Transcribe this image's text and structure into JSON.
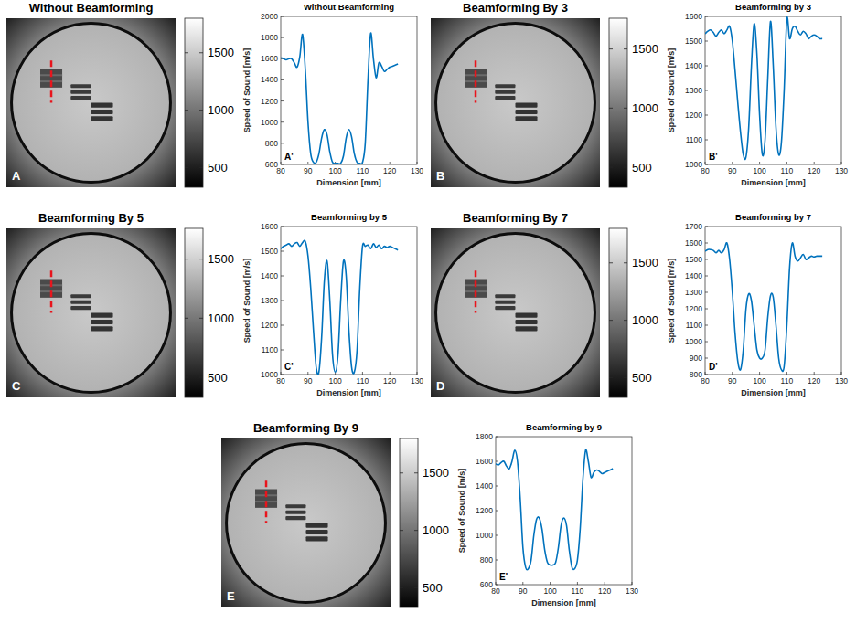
{
  "chart_data": [
    {
      "type": "line",
      "title": "Without Beamforming",
      "panel_label": "A'",
      "x_label": "Dimension [mm]",
      "y_label": "Speed of Sound [m/s]",
      "color": "#0072bd",
      "grid": false,
      "xlim": [
        80,
        130
      ],
      "xticks": [
        80,
        90,
        100,
        110,
        120,
        130
      ],
      "ylim": [
        600,
        2000
      ],
      "yticks": [
        600,
        800,
        1000,
        1200,
        1400,
        1600,
        1800,
        2000
      ],
      "x": [
        80,
        81,
        82,
        83,
        84,
        85,
        86,
        87,
        88,
        89,
        90,
        91,
        92,
        93,
        94,
        95,
        96,
        97,
        98,
        99,
        100,
        101,
        102,
        103,
        104,
        105,
        106,
        107,
        108,
        109,
        110,
        111,
        112,
        113,
        114,
        115,
        116,
        117,
        118,
        119,
        120,
        121,
        122,
        123
      ],
      "values": [
        1610,
        1600,
        1590,
        1600,
        1600,
        1560,
        1520,
        1620,
        1830,
        1500,
        1000,
        700,
        620,
        620,
        700,
        850,
        930,
        880,
        720,
        620,
        610,
        610,
        610,
        680,
        850,
        930,
        860,
        700,
        620,
        610,
        620,
        800,
        1400,
        1840,
        1600,
        1420,
        1560,
        1530,
        1480,
        1500,
        1520,
        1530,
        1540,
        1550
      ]
    },
    {
      "type": "line",
      "title": "Beamforming by 3",
      "panel_label": "B'",
      "x_label": "Dimension [mm]",
      "y_label": "Speed of Sound [m/s]",
      "color": "#0072bd",
      "grid": false,
      "xlim": [
        80,
        130
      ],
      "xticks": [
        80,
        90,
        100,
        110,
        120,
        130
      ],
      "ylim": [
        1000,
        1600
      ],
      "yticks": [
        1000,
        1100,
        1200,
        1300,
        1400,
        1500,
        1600
      ],
      "x": [
        80,
        81,
        82,
        83,
        84,
        85,
        86,
        87,
        88,
        89,
        90,
        91,
        92,
        93,
        94,
        95,
        96,
        97,
        98,
        99,
        100,
        101,
        102,
        103,
        104,
        105,
        106,
        107,
        108,
        109,
        110,
        111,
        112,
        113,
        114,
        115,
        116,
        117,
        118,
        119,
        120,
        121,
        122,
        123
      ],
      "values": [
        1530,
        1540,
        1545,
        1535,
        1520,
        1535,
        1545,
        1530,
        1545,
        1560,
        1500,
        1380,
        1250,
        1130,
        1040,
        1030,
        1150,
        1400,
        1570,
        1450,
        1200,
        1040,
        1100,
        1350,
        1580,
        1400,
        1150,
        1040,
        1090,
        1300,
        1590,
        1510,
        1550,
        1560,
        1540,
        1525,
        1540,
        1530,
        1510,
        1520,
        1525,
        1520,
        1510,
        1510
      ]
    },
    {
      "type": "line",
      "title": "Beamforming by 5",
      "panel_label": "C'",
      "x_label": "Dimension [mm]",
      "y_label": "Speed of Sound [m/s]",
      "color": "#0072bd",
      "grid": false,
      "xlim": [
        80,
        130
      ],
      "xticks": [
        80,
        90,
        100,
        110,
        120,
        130
      ],
      "ylim": [
        1000,
        1600
      ],
      "yticks": [
        1000,
        1100,
        1200,
        1300,
        1400,
        1500,
        1600
      ],
      "x": [
        80,
        81,
        82,
        83,
        84,
        85,
        86,
        87,
        88,
        89,
        90,
        91,
        92,
        93,
        94,
        95,
        96,
        97,
        98,
        99,
        100,
        101,
        102,
        103,
        104,
        105,
        106,
        107,
        108,
        109,
        110,
        111,
        112,
        113,
        114,
        115,
        116,
        117,
        118,
        119,
        120,
        121,
        122,
        123
      ],
      "values": [
        1510,
        1520,
        1525,
        1530,
        1520,
        1530,
        1535,
        1520,
        1535,
        1540,
        1480,
        1350,
        1180,
        1030,
        1010,
        1150,
        1380,
        1460,
        1300,
        1080,
        1010,
        1080,
        1300,
        1460,
        1400,
        1180,
        1030,
        1010,
        1100,
        1350,
        1520,
        1520,
        1525,
        1510,
        1530,
        1515,
        1525,
        1510,
        1520,
        1515,
        1520,
        1515,
        1510,
        1505
      ]
    },
    {
      "type": "line",
      "title": "Beamforming by 7",
      "panel_label": "D'",
      "x_label": "Dimension [mm]",
      "y_label": "Speed of Sound [m/s]",
      "color": "#0072bd",
      "grid": false,
      "xlim": [
        80,
        130
      ],
      "xticks": [
        80,
        90,
        100,
        110,
        120,
        130
      ],
      "ylim": [
        800,
        1700
      ],
      "yticks": [
        800,
        900,
        1000,
        1100,
        1200,
        1300,
        1400,
        1500,
        1600,
        1700
      ],
      "x": [
        80,
        81,
        82,
        83,
        84,
        85,
        86,
        87,
        88,
        89,
        90,
        91,
        92,
        93,
        94,
        95,
        96,
        97,
        98,
        99,
        100,
        101,
        102,
        103,
        104,
        105,
        106,
        107,
        108,
        109,
        110,
        111,
        112,
        113,
        114,
        115,
        116,
        117,
        118,
        119,
        120,
        121,
        122,
        123
      ],
      "values": [
        1550,
        1560,
        1560,
        1555,
        1540,
        1555,
        1540,
        1560,
        1600,
        1500,
        1300,
        1050,
        880,
        830,
        950,
        1200,
        1290,
        1250,
        1100,
        950,
        900,
        900,
        950,
        1150,
        1280,
        1270,
        1100,
        900,
        830,
        850,
        1100,
        1450,
        1600,
        1520,
        1490,
        1510,
        1530,
        1500,
        1510,
        1520,
        1515,
        1520,
        1520,
        1520
      ]
    },
    {
      "type": "line",
      "title": "Beamforming by 9",
      "panel_label": "E'",
      "x_label": "Dimension [mm]",
      "y_label": "Speed of Sound [m/s]",
      "color": "#0072bd",
      "grid": false,
      "xlim": [
        80,
        130
      ],
      "xticks": [
        80,
        90,
        100,
        110,
        120,
        130
      ],
      "ylim": [
        600,
        1800
      ],
      "yticks": [
        600,
        800,
        1000,
        1200,
        1400,
        1600,
        1800
      ],
      "x": [
        80,
        81,
        82,
        83,
        84,
        85,
        86,
        87,
        88,
        89,
        90,
        91,
        92,
        93,
        94,
        95,
        96,
        97,
        98,
        99,
        100,
        101,
        102,
        103,
        104,
        105,
        106,
        107,
        108,
        109,
        110,
        111,
        112,
        113,
        114,
        115,
        116,
        117,
        118,
        119,
        120,
        121,
        122,
        123
      ],
      "values": [
        1580,
        1570,
        1590,
        1600,
        1560,
        1540,
        1600,
        1690,
        1600,
        1300,
        900,
        740,
        730,
        800,
        1000,
        1130,
        1140,
        1050,
        880,
        780,
        760,
        760,
        780,
        900,
        1080,
        1140,
        1080,
        880,
        740,
        730,
        800,
        1050,
        1450,
        1690,
        1600,
        1470,
        1510,
        1530,
        1520,
        1500,
        1510,
        1520,
        1530,
        1540
      ]
    }
  ],
  "images": [
    {
      "label": "A",
      "title": "Without Beamforming",
      "colorbar": {
        "range": [
          330,
          1800
        ],
        "ticks": [
          500,
          1000,
          1500
        ]
      }
    },
    {
      "label": "B",
      "title": "Beamforming By 3",
      "colorbar": {
        "range": [
          330,
          1760
        ],
        "ticks": [
          500,
          1000,
          1500
        ]
      }
    },
    {
      "label": "C",
      "title": "Beamforming By 5",
      "colorbar": {
        "range": [
          330,
          1760
        ],
        "ticks": [
          500,
          1000,
          1500
        ]
      }
    },
    {
      "label": "D",
      "title": "Beamforming By 7",
      "colorbar": {
        "range": [
          330,
          1800
        ],
        "ticks": [
          500,
          1000,
          1500
        ]
      }
    },
    {
      "label": "E",
      "title": "Beamforming By 9",
      "colorbar": {
        "range": [
          330,
          1800
        ],
        "ticks": [
          500,
          1000,
          1500
        ]
      }
    }
  ]
}
